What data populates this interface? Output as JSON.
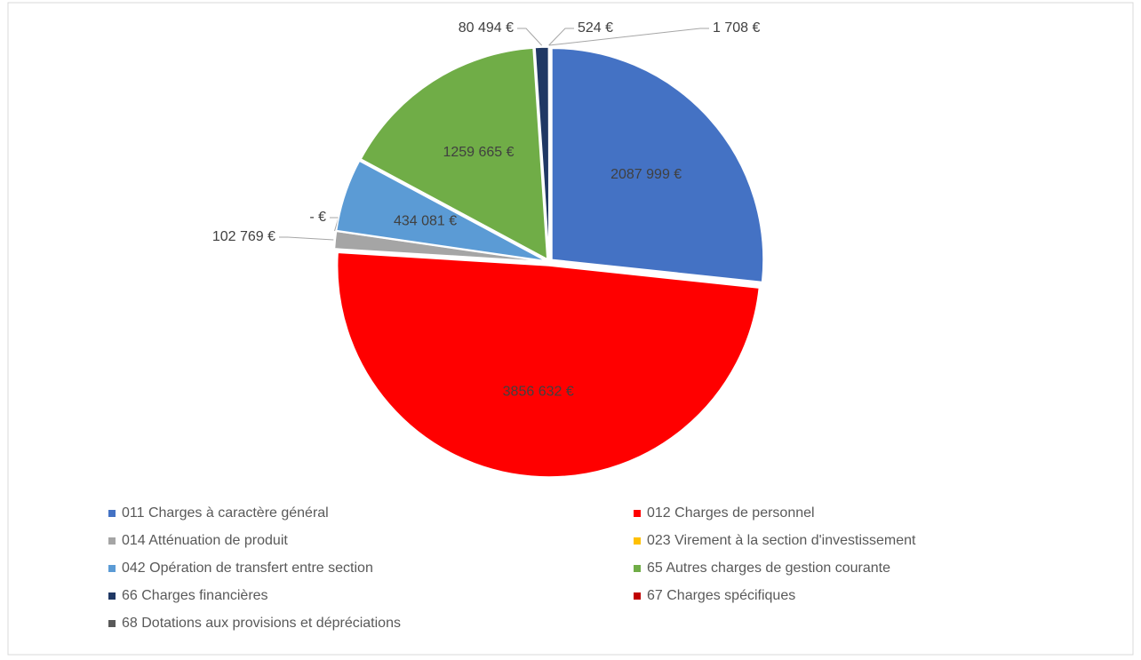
{
  "chart_data": {
    "type": "pie",
    "categories": [
      "011 Charges à caractère général",
      "012 Charges de personnel",
      "014 Atténuation de produit",
      "023 Virement à la section d'investissement",
      "042 Opération de transfert entre section",
      "65 Autres charges de gestion courante",
      "66 Charges financières",
      "67 Charges spécifiques",
      "68 Dotations aux provisions et dépréciations"
    ],
    "values": [
      2087999,
      3856632,
      102769,
      0,
      434081,
      1259665,
      80494,
      524,
      1708
    ],
    "value_labels": [
      "2087 999 €",
      "3856 632 €",
      "102 769 €",
      "-   €",
      "434 081 €",
      "1259 665 €",
      "80 494 €",
      "524 €",
      "1 708 €"
    ],
    "colors": [
      "#4472c4",
      "#ff0000",
      "#a5a5a5",
      "#ffc000",
      "#5b9bd5",
      "#70ad47",
      "#203864",
      "#c00000",
      "#595959"
    ],
    "legend": "bottom"
  }
}
